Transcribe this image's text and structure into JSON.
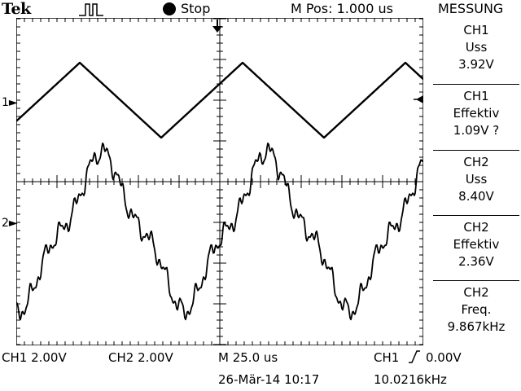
{
  "header": {
    "brand": "Tek",
    "trigger_icon": "trigger-pulse-icon",
    "run_state": "Stop",
    "position": "M Pos: 1.000 us"
  },
  "measurements": {
    "title": "MESSUNG",
    "items": [
      {
        "source": "CH1",
        "name": "Uss",
        "value": "3.92V"
      },
      {
        "source": "CH1",
        "name": "Effektiv",
        "value": "1.09V ?"
      },
      {
        "source": "CH2",
        "name": "Uss",
        "value": "8.40V"
      },
      {
        "source": "CH2",
        "name": "Effektiv",
        "value": "2.36V"
      },
      {
        "source": "CH2",
        "name": "Freq.",
        "value": "9.867kHz"
      }
    ]
  },
  "channels": {
    "ch1_marker": "1",
    "ch2_marker": "2"
  },
  "status": {
    "ch1_scale": "CH1  2.00V",
    "ch2_scale": "CH2  2.00V",
    "timebase": "M 25.0 us",
    "trigger_source": "CH1",
    "trigger_level": "0.00V",
    "datetime": "26-Mär-14 10:17",
    "trigger_freq": "10.0216kHz"
  },
  "colors": {
    "background": "#ffffff",
    "foreground": "#000000"
  }
}
